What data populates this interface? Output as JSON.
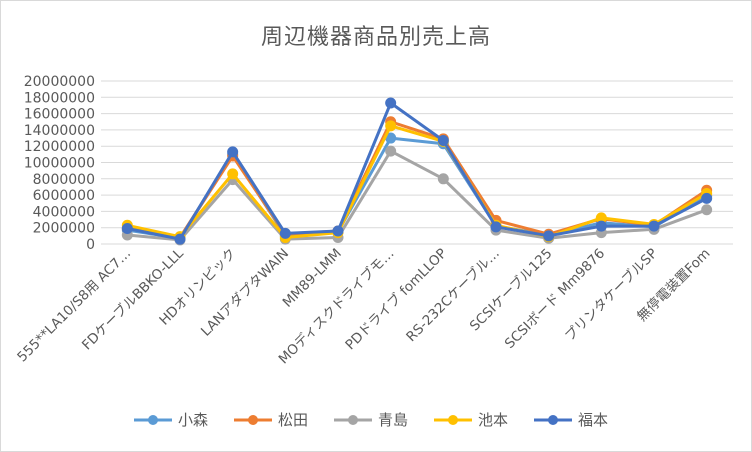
{
  "chart_data": {
    "type": "line",
    "title": "周辺機器商品別売上高",
    "xlabel": "",
    "ylabel": "",
    "ylim": [
      0,
      20000000
    ],
    "y_ticks": [
      "0",
      "2000000",
      "4000000",
      "6000000",
      "8000000",
      "10000000",
      "12000000",
      "14000000",
      "16000000",
      "18000000",
      "20000000"
    ],
    "grid": "horizontal",
    "legend_position": "bottom",
    "categories": [
      "555**LA10/S8用 AC7…",
      "FDケーブルBBKO-LLL",
      "HDオリンピック",
      "LANアダプタWAIN",
      "MM89-LMM",
      "MOディスクドライブモ…",
      "PDドライブ fomLLOP",
      "RS-232Cケーブル…",
      "SCSIケーブル125",
      "SCSIボード Mm9876",
      "プリンタケーブルSP",
      "無停電装置Fom"
    ],
    "series": [
      {
        "name": "小森",
        "color": "#5B9BD5",
        "values": [
          1700000,
          700000,
          11000000,
          1000000,
          1500000,
          13000000,
          12300000,
          2200000,
          1100000,
          2600000,
          2100000,
          5900000
        ]
      },
      {
        "name": "松田",
        "color": "#ED7D31",
        "values": [
          1900000,
          800000,
          10800000,
          1200000,
          1600000,
          15000000,
          12900000,
          2900000,
          1200000,
          3100000,
          2300000,
          6600000
        ]
      },
      {
        "name": "青島",
        "color": "#A5A5A5",
        "values": [
          1100000,
          500000,
          7900000,
          600000,
          800000,
          11400000,
          8000000,
          1700000,
          700000,
          1400000,
          1800000,
          4200000
        ]
      },
      {
        "name": "池本",
        "color": "#FFC000",
        "values": [
          2300000,
          900000,
          8600000,
          800000,
          1400000,
          14500000,
          12600000,
          2300000,
          900000,
          3200000,
          2400000,
          6200000
        ]
      },
      {
        "name": "福本",
        "color": "#4472C4",
        "values": [
          1900000,
          600000,
          11300000,
          1300000,
          1600000,
          17300000,
          12700000,
          2100000,
          1000000,
          2200000,
          2200000,
          5600000
        ]
      }
    ]
  }
}
